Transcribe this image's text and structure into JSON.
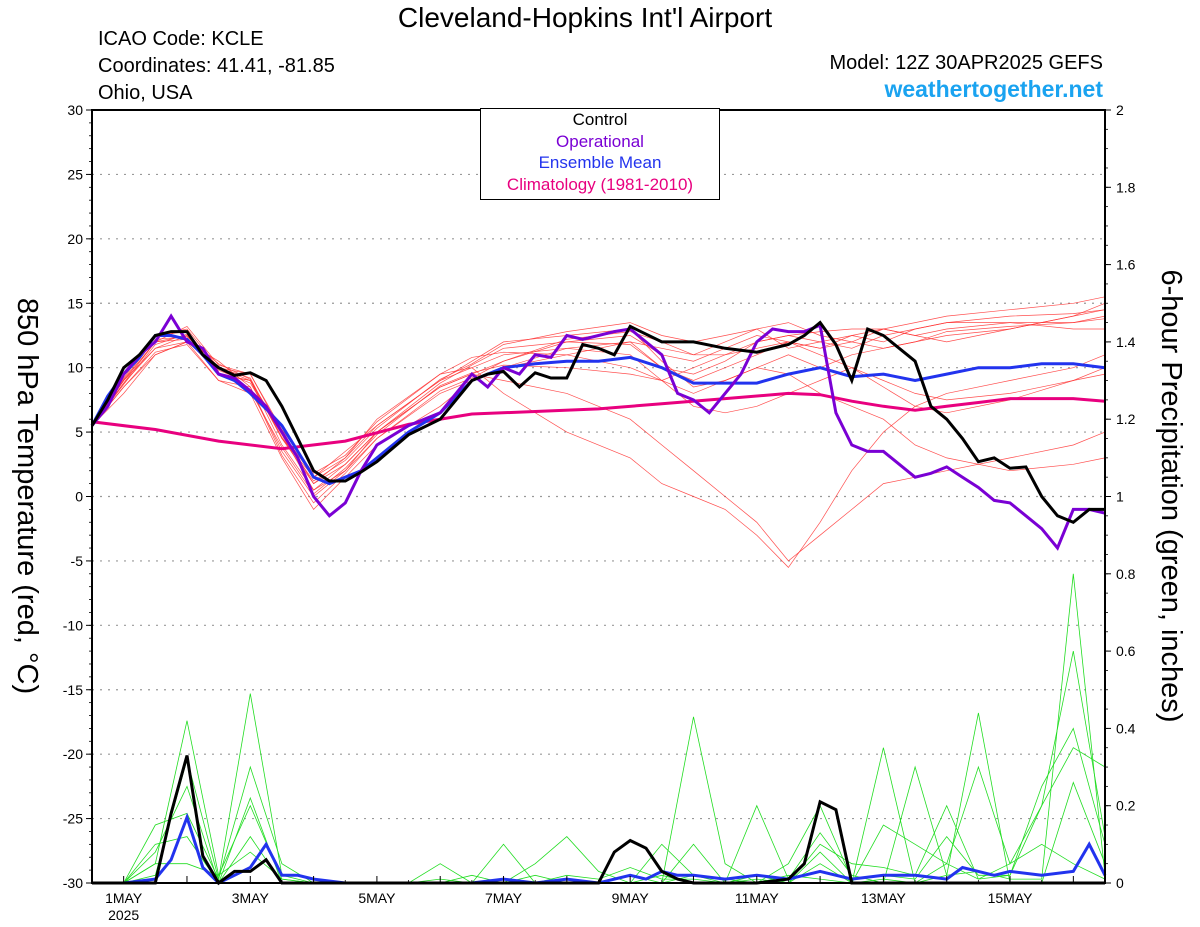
{
  "header": {
    "title": "Cleveland-Hopkins Int'l Airport",
    "icao": "ICAO Code: KCLE",
    "coords": "Coordinates: 41.41, -81.85",
    "location": "Ohio, USA",
    "model": "Model: 12Z 30APR2025 GEFS",
    "site": "weathertogether.net"
  },
  "colors": {
    "control": "#000000",
    "operational": "#7a00d4",
    "ensemble_mean": "#2233ee",
    "climatology": "#e8007f",
    "members_temp": "#ff3030",
    "members_precip": "#22dd22",
    "site": "#1aa3f0"
  },
  "chart_data": {
    "type": "line",
    "xlabel": "",
    "ylabel": "850 hPa Temperature (red, °C)",
    "y2label": "6-hour Precipitation (green, inches)",
    "ylim": [
      -30,
      30
    ],
    "y2lim": [
      0,
      2
    ],
    "yticks": [
      "30",
      "25",
      "20",
      "15",
      "10",
      "5",
      "0",
      "-5",
      "-10",
      "-15",
      "-20",
      "-25",
      "-30"
    ],
    "y2ticks": [
      "2",
      "1.8",
      "1.6",
      "1.4",
      "1.2",
      "1",
      "0.8",
      "0.6",
      "0.4",
      "0.2",
      "0"
    ],
    "xticks": [
      {
        "day": 1,
        "label": "1MAY",
        "sublabel": "2025"
      },
      {
        "day": 3,
        "label": "3MAY",
        "sublabel": ""
      },
      {
        "day": 5,
        "label": "5MAY",
        "sublabel": ""
      },
      {
        "day": 7,
        "label": "7MAY",
        "sublabel": ""
      },
      {
        "day": 9,
        "label": "9MAY",
        "sublabel": ""
      },
      {
        "day": 11,
        "label": "11MAY",
        "sublabel": ""
      },
      {
        "day": 13,
        "label": "13MAY",
        "sublabel": ""
      },
      {
        "day": 15,
        "label": "15MAY",
        "sublabel": ""
      }
    ],
    "xlim": [
      0.5,
      16.5
    ],
    "grid": true,
    "legend": {
      "placement": "top-center",
      "entries": [
        "Control",
        "Operational",
        "Ensemble Mean",
        "Climatology (1981-2010)"
      ]
    },
    "temperature": {
      "control": {
        "name": "Control",
        "x": [
          0.5,
          0.75,
          1,
          1.25,
          1.5,
          1.75,
          2,
          2.25,
          2.5,
          2.75,
          3,
          3.25,
          3.5,
          3.75,
          4,
          4.25,
          4.5,
          4.75,
          5,
          5.5,
          6,
          6.25,
          6.5,
          6.75,
          7,
          7.25,
          7.5,
          7.75,
          8,
          8.25,
          8.5,
          8.75,
          9,
          9.5,
          10,
          10.5,
          11,
          11.5,
          11.75,
          12,
          12.25,
          12.5,
          12.75,
          13,
          13.5,
          13.75,
          14,
          14.25,
          14.5,
          14.75,
          15,
          15.25,
          15.5,
          15.75,
          16,
          16.25,
          16.5
        ],
        "y": [
          5.5,
          7.5,
          10,
          11,
          12.5,
          12.8,
          12.8,
          11,
          10,
          9.4,
          9.6,
          9,
          7,
          4.5,
          2,
          1.2,
          1.2,
          1.9,
          2.7,
          4.8,
          6,
          7.5,
          9,
          9.5,
          9.7,
          8.5,
          9.6,
          9.2,
          9.2,
          11.8,
          11.5,
          11,
          13.2,
          12,
          12,
          11.5,
          11.2,
          11.8,
          12.5,
          13.5,
          11.8,
          9,
          13,
          12.5,
          10.5,
          7,
          6,
          4.5,
          2.7,
          3,
          2.2,
          2.3,
          0,
          -1.5,
          -2,
          -1,
          -1
        ]
      },
      "operational": {
        "name": "Operational",
        "x": [
          0.5,
          0.75,
          1,
          1.25,
          1.5,
          1.75,
          2,
          2.25,
          2.5,
          2.75,
          3,
          3.25,
          3.5,
          3.75,
          4,
          4.25,
          4.5,
          4.75,
          5,
          5.5,
          6,
          6.5,
          6.75,
          7,
          7.25,
          7.5,
          7.75,
          8,
          8.25,
          8.5,
          8.75,
          9,
          9.25,
          9.5,
          9.75,
          10,
          10.25,
          10.5,
          10.75,
          11,
          11.25,
          11.5,
          11.75,
          12,
          12.25,
          12.5,
          12.75,
          13,
          13.5,
          13.75,
          14,
          14.25,
          14.5,
          14.75,
          15,
          15.25,
          15.5,
          15.75,
          16,
          16.25,
          16.5
        ],
        "y": [
          5.5,
          7,
          9.5,
          11,
          12,
          14,
          12,
          11.5,
          9.5,
          9.2,
          8.2,
          7,
          5,
          3,
          0,
          -1.5,
          -0.5,
          2,
          4,
          5.5,
          6.5,
          9.5,
          8.5,
          10,
          9.5,
          11,
          10.8,
          12.5,
          12.2,
          12.5,
          12.8,
          13,
          12,
          11,
          8,
          7.5,
          6.5,
          8,
          9.5,
          12,
          13,
          12.8,
          12.8,
          13.3,
          6.5,
          4,
          3.5,
          3.5,
          1.5,
          1.8,
          2.3,
          1.5,
          0.7,
          -0.3,
          -0.5,
          -1.5,
          -2.5,
          -4,
          -1,
          -1,
          -1.3
        ]
      },
      "mean": {
        "name": "Ensemble Mean",
        "x": [
          0.5,
          0.75,
          1,
          1.25,
          1.5,
          1.75,
          2,
          2.25,
          2.5,
          2.75,
          3,
          3.25,
          3.5,
          3.75,
          4,
          4.25,
          4.5,
          4.75,
          5,
          5.5,
          6,
          6.5,
          7,
          7.5,
          8,
          8.5,
          9,
          9.5,
          10,
          10.5,
          11,
          11.5,
          12,
          12.5,
          13,
          13.5,
          14,
          14.5,
          15,
          15.5,
          16,
          16.5
        ],
        "y": [
          5.5,
          7.8,
          9.5,
          10.8,
          12.5,
          12.5,
          12.2,
          11,
          9.5,
          9,
          8,
          6.8,
          5.5,
          3.5,
          1.5,
          1,
          1.5,
          2,
          3,
          5,
          6.5,
          9,
          10,
          10.3,
          10.5,
          10.5,
          10.8,
          10,
          8.8,
          8.8,
          8.8,
          9.5,
          10,
          9.3,
          9.5,
          9,
          9.5,
          10,
          10,
          10.3,
          10.3,
          10
        ]
      },
      "climatology": {
        "name": "Climatology (1981-2010)",
        "x": [
          0.5,
          1.5,
          2.5,
          3.5,
          4.5,
          5.5,
          6.5,
          7.5,
          8.5,
          9.5,
          10.5,
          11.5,
          12,
          12.5,
          13,
          13.5,
          14,
          14.5,
          15,
          15.5,
          16,
          16.5
        ],
        "y": [
          5.8,
          5.2,
          4.3,
          3.7,
          4.3,
          5.6,
          6.4,
          6.6,
          6.8,
          7.2,
          7.6,
          8,
          7.9,
          7.4,
          7.0,
          6.7,
          7,
          7.3,
          7.6,
          7.6,
          7.6,
          7.4
        ]
      },
      "members": [
        [
          5.5,
          8.8,
          12,
          12.5,
          9.5,
          9,
          5,
          1,
          2.5,
          5,
          8.5,
          9.5,
          10.5,
          12,
          12.5,
          11,
          10.5,
          11.5,
          12.5,
          12,
          11.5,
          12,
          13,
          13.5,
          14,
          14.5,
          15,
          15.5
        ],
        [
          5.5,
          9,
          11.5,
          12,
          10,
          9,
          4.5,
          1.5,
          3,
          6,
          9.5,
          10,
          11,
          11.5,
          12,
          11.5,
          11,
          12,
          13,
          11.5,
          12,
          12.5,
          12,
          13,
          13.5,
          14,
          14.2,
          14.5
        ],
        [
          5.5,
          8.5,
          11,
          12,
          10.5,
          8.5,
          3.5,
          0,
          2,
          4.5,
          8,
          9,
          10,
          11,
          12,
          10,
          9,
          10,
          11,
          12,
          11.5,
          12.5,
          13,
          12.5,
          13,
          13.5,
          13.5,
          14
        ],
        [
          5.5,
          9.5,
          12.5,
          13,
          10,
          9.5,
          5,
          1.5,
          3.5,
          5.5,
          9,
          10.5,
          12,
          12.5,
          13,
          10.5,
          8.5,
          9,
          10,
          11,
          10,
          11,
          11.5,
          12,
          12.5,
          13,
          14,
          15
        ],
        [
          5.5,
          8,
          11,
          12,
          9,
          8,
          3,
          -1,
          1.5,
          4,
          7,
          9,
          10,
          11.5,
          11,
          9,
          8,
          9,
          10,
          9.5,
          8,
          7,
          6,
          4,
          3,
          2,
          2.5,
          3
        ],
        [
          5.5,
          9,
          12,
          12.2,
          9.5,
          9,
          4,
          0.5,
          2.5,
          5,
          8.5,
          9.5,
          9,
          8,
          6,
          4,
          2,
          0,
          -2,
          -5,
          -3,
          -1,
          1,
          1.5,
          2,
          3,
          4,
          5
        ],
        [
          5.5,
          8.8,
          11.5,
          12.5,
          10,
          9.2,
          4.5,
          1,
          3,
          5.5,
          9,
          10,
          8,
          5,
          3,
          1,
          0,
          -1,
          -3,
          -5.5,
          -2,
          2,
          5,
          7,
          8,
          9,
          10,
          11
        ],
        [
          5.5,
          9.2,
          12.5,
          12.8,
          9.8,
          8.8,
          4.8,
          0.5,
          2,
          5,
          8.8,
          10.2,
          11.5,
          12,
          11.8,
          10,
          9.5,
          10.5,
          12,
          12.5,
          12,
          11.5,
          12.5,
          13,
          13.5,
          13.5,
          13,
          13
        ],
        [
          5.5,
          8.5,
          11.2,
          11.8,
          9,
          8.5,
          3.2,
          -0.5,
          1.8,
          4.5,
          8.2,
          9.2,
          10.5,
          12.2,
          12.8,
          12,
          11,
          11,
          12,
          12.5,
          12.8,
          13,
          13,
          12.5,
          12,
          13,
          14,
          14.5
        ],
        [
          5.5,
          9,
          12,
          13.2,
          10.2,
          9.5,
          5.2,
          1.8,
          3.2,
          5.8,
          9.5,
          10.8,
          11.2,
          11,
          10,
          9,
          7,
          6.5,
          7,
          8,
          9,
          10,
          8.5,
          7,
          6.5,
          7.5,
          9,
          10
        ],
        [
          5.5,
          8.7,
          11.8,
          12.6,
          9.6,
          8.2,
          3.8,
          0.2,
          2.2,
          4.8,
          8.6,
          9.6,
          10.2,
          10,
          9.5,
          9,
          10,
          11,
          11.5,
          12,
          11,
          10,
          9,
          8,
          7.5,
          8,
          9,
          9.5
        ],
        [
          5.5,
          9.1,
          12.2,
          12.4,
          10.3,
          9.1,
          4.6,
          1.2,
          2.8,
          5.3,
          9.1,
          10.3,
          11.8,
          12.8,
          13.5,
          12.5,
          12,
          12.5,
          13,
          13.5,
          12.5,
          12,
          11.5,
          12,
          12.8,
          13.2,
          13.5,
          13.8
        ]
      ],
      "member_days": [
        0.5,
        1,
        1.5,
        2,
        2.5,
        3,
        3.5,
        4,
        4.5,
        5,
        6,
        6.5,
        7,
        8,
        9,
        9.5,
        10,
        10.5,
        11,
        11.5,
        12,
        12.5,
        13,
        13.5,
        14,
        15,
        16,
        16.5
      ]
    },
    "precipitation": {
      "control": {
        "name": "Control",
        "x": [
          0.5,
          1,
          1.5,
          1.75,
          2,
          2.25,
          2.5,
          2.75,
          3,
          3.25,
          3.5,
          3.75,
          4,
          4.5,
          5,
          6,
          7,
          8,
          8.5,
          8.75,
          9,
          9.25,
          9.5,
          9.75,
          10,
          10.5,
          11,
          11.5,
          11.75,
          12,
          12.25,
          12.5,
          12.75,
          13,
          13.5,
          14,
          14.5,
          15,
          15.5,
          16,
          16.5
        ],
        "y": [
          0,
          0,
          0,
          0.18,
          0.33,
          0.07,
          0,
          0.03,
          0.03,
          0.06,
          0,
          0,
          0,
          0,
          0,
          0,
          0,
          0,
          0,
          0.08,
          0.11,
          0.09,
          0.03,
          0.01,
          0,
          0,
          0,
          0.01,
          0.05,
          0.21,
          0.19,
          0,
          0,
          0,
          0,
          0,
          0,
          0,
          0,
          0,
          0
        ]
      },
      "mean": {
        "name": "Ensemble Mean",
        "x": [
          0.5,
          1,
          1.5,
          1.75,
          2,
          2.25,
          2.5,
          2.75,
          3,
          3.25,
          3.5,
          3.75,
          4,
          4.5,
          5,
          5.5,
          6,
          6.5,
          7,
          7.5,
          8,
          8.5,
          9,
          9.25,
          9.5,
          9.75,
          10,
          10.5,
          11,
          11.5,
          12,
          12.5,
          13,
          13.5,
          14,
          14.25,
          14.5,
          14.75,
          15,
          15.5,
          16,
          16.25,
          16.5
        ],
        "y": [
          0,
          0,
          0.01,
          0.06,
          0.17,
          0.04,
          0,
          0.02,
          0.04,
          0.1,
          0.02,
          0.02,
          0.01,
          0,
          0,
          0,
          0,
          0,
          0.01,
          0,
          0.01,
          0,
          0.02,
          0.01,
          0.03,
          0.02,
          0.02,
          0.01,
          0.02,
          0.01,
          0.03,
          0.01,
          0.02,
          0.02,
          0.01,
          0.04,
          0.03,
          0.02,
          0.03,
          0.02,
          0.03,
          0.1,
          0.02
        ]
      },
      "member_days": [
        0.5,
        1,
        1.5,
        2,
        2.5,
        3,
        3.5,
        4,
        4.5,
        5,
        5.5,
        6,
        6.5,
        7,
        7.5,
        8,
        8.5,
        9,
        9.5,
        10,
        10.5,
        11,
        11.5,
        12,
        12.5,
        13,
        13.5,
        14,
        14.5,
        15,
        15.5,
        16,
        16.5
      ],
      "members": [
        [
          0,
          0,
          0.05,
          0.42,
          0.02,
          0.2,
          0.01,
          0,
          0,
          0,
          0,
          0.01,
          0,
          0,
          0.05,
          0.12,
          0.03,
          0,
          0,
          0.43,
          0.05,
          0,
          0,
          0.05,
          0,
          0.35,
          0,
          0.02,
          0.44,
          0,
          0,
          0.26,
          0.05
        ],
        [
          0,
          0,
          0.15,
          0.18,
          0.01,
          0.49,
          0.02,
          0,
          0,
          0,
          0,
          0,
          0,
          0.1,
          0,
          0.02,
          0.01,
          0.04,
          0.01,
          0.01,
          0,
          0.2,
          0.01,
          0.13,
          0.02,
          0,
          0.3,
          0.02,
          0.03,
          0.01,
          0.01,
          0.8,
          0.02
        ],
        [
          0,
          0,
          0.08,
          0.25,
          0,
          0.22,
          0,
          0,
          0,
          0,
          0,
          0.05,
          0,
          0,
          0,
          0,
          0,
          0,
          0.1,
          0.02,
          0.01,
          0,
          0.05,
          0.2,
          0.01,
          0.02,
          0.01,
          0.12,
          0.02,
          0.02,
          0.2,
          0.6,
          0.12
        ],
        [
          0,
          0,
          0.02,
          0.32,
          0.01,
          0.3,
          0.05,
          0,
          0,
          0,
          0,
          0,
          0.02,
          0,
          0.02,
          0,
          0,
          0,
          0,
          0.02,
          0,
          0.01,
          0,
          0.08,
          0,
          0.15,
          0.1,
          0.05,
          0.3,
          0.05,
          0.2,
          0.35,
          0.3
        ],
        [
          0,
          0,
          0.1,
          0.12,
          0,
          0.12,
          0,
          0,
          0,
          0,
          0,
          0,
          0,
          0,
          0,
          0,
          0,
          0.02,
          0,
          0.1,
          0,
          0.02,
          0,
          0.1,
          0.05,
          0.04,
          0.02,
          0.2,
          0.01,
          0.05,
          0.1,
          0.05,
          0.01
        ],
        [
          0,
          0,
          0.05,
          0.05,
          0.02,
          0.08,
          0.01,
          0,
          0,
          0,
          0,
          0,
          0,
          0,
          0,
          0,
          0,
          0,
          0.02,
          0,
          0,
          0,
          0.02,
          0.01,
          0,
          0.01,
          0,
          0.05,
          0.01,
          0.02,
          0.25,
          0.4,
          0.1
        ]
      ]
    }
  }
}
